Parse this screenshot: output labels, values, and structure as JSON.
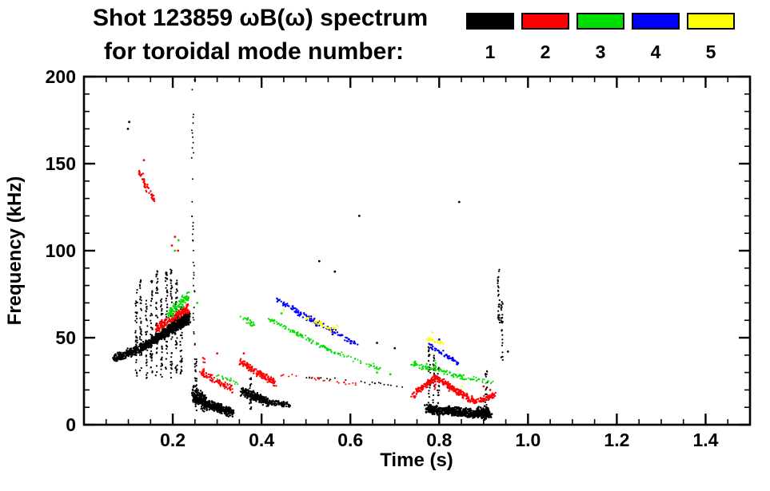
{
  "title": {
    "line1": "Shot 123859 ωB(ω) spectrum",
    "line2": "for toroidal mode number:"
  },
  "legend": {
    "entries": [
      {
        "label": "1",
        "color": "#000000"
      },
      {
        "label": "2",
        "color": "#ff0000"
      },
      {
        "label": "3",
        "color": "#00e000"
      },
      {
        "label": "4",
        "color": "#0000ff"
      },
      {
        "label": "5",
        "color": "#ffff00"
      }
    ]
  },
  "chart_data": {
    "type": "scatter",
    "title": "Shot 123859 ωB(ω) spectrum for toroidal mode number",
    "xlabel": "Time (s)",
    "ylabel": "Frequency (kHz)",
    "xlim": [
      0,
      1.5
    ],
    "ylim": [
      0,
      200
    ],
    "grid": false,
    "legend_position": "top-right",
    "xticks": {
      "major": [
        0.2,
        0.4,
        0.6,
        0.8,
        1.0,
        1.2,
        1.4
      ],
      "labels": [
        "0.2",
        "0.4",
        "0.6",
        "0.8",
        "1.0",
        "1.2",
        "1.4"
      ],
      "minor_step": 0.05
    },
    "yticks": {
      "major": [
        0,
        50,
        100,
        150,
        200
      ],
      "labels": [
        "0",
        "50",
        "100",
        "150",
        "200"
      ],
      "minor_step": 10
    },
    "series": [
      {
        "name": "toroidal mode n=1",
        "mode": 1,
        "color": "#000000",
        "segments": [
          {
            "t0": 0.068,
            "t1": 0.13,
            "f0": 38,
            "f1": 44,
            "n": 220,
            "jf": 2.8,
            "r": 1.2
          },
          {
            "t0": 0.13,
            "t1": 0.19,
            "f0": 44,
            "f1": 54,
            "n": 300,
            "jf": 3.2,
            "r": 1.2
          },
          {
            "t0": 0.19,
            "t1": 0.237,
            "f0": 54,
            "f1": 62,
            "n": 380,
            "jf": 4.5,
            "r": 1.3
          },
          {
            "t0": 0.245,
            "t1": 0.275,
            "f0": 18,
            "f1": 12,
            "n": 220,
            "jf": 6.0,
            "r": 1.2
          },
          {
            "t0": 0.275,
            "t1": 0.335,
            "f0": 12,
            "f1": 7,
            "n": 320,
            "jf": 3.2,
            "r": 1.2
          },
          {
            "t0": 0.355,
            "t1": 0.415,
            "f0": 19,
            "f1": 13,
            "n": 220,
            "jf": 3.0,
            "r": 1.2
          },
          {
            "t0": 0.415,
            "t1": 0.465,
            "f0": 13,
            "f1": 11,
            "n": 90,
            "jf": 2.0,
            "r": 1.1
          },
          {
            "t0": 0.5,
            "t1": 0.72,
            "f0": 28,
            "f1": 22,
            "n": 22,
            "jf": 1.2,
            "r": 1.0
          },
          {
            "t0": 0.77,
            "t1": 0.9,
            "f0": 9,
            "f1": 6,
            "n": 420,
            "jf": 3.0,
            "r": 1.3
          },
          {
            "t0": 0.885,
            "t1": 0.915,
            "f0": 8,
            "f1": 6,
            "n": 130,
            "jf": 4.0,
            "r": 1.3
          }
        ],
        "vlines": [
          {
            "t": 0.118,
            "f0": 28,
            "f1": 78,
            "n": 38
          },
          {
            "t": 0.128,
            "f0": 30,
            "f1": 86,
            "n": 42
          },
          {
            "t": 0.141,
            "f0": 26,
            "f1": 72,
            "n": 34
          },
          {
            "t": 0.152,
            "f0": 30,
            "f1": 84,
            "n": 40
          },
          {
            "t": 0.164,
            "f0": 28,
            "f1": 90,
            "n": 44
          },
          {
            "t": 0.175,
            "f0": 26,
            "f1": 78,
            "n": 38
          },
          {
            "t": 0.186,
            "f0": 30,
            "f1": 88,
            "n": 42
          },
          {
            "t": 0.197,
            "f0": 25,
            "f1": 90,
            "n": 46
          },
          {
            "t": 0.208,
            "f0": 30,
            "f1": 84,
            "n": 40
          },
          {
            "t": 0.219,
            "f0": 28,
            "f1": 72,
            "n": 34
          },
          {
            "t": 0.245,
            "f0": 100,
            "f1": 195,
            "n": 22,
            "r": 1.0
          },
          {
            "t": 0.248,
            "f0": 40,
            "f1": 95,
            "n": 16,
            "r": 1.0
          },
          {
            "t": 0.252,
            "f0": 8,
            "f1": 38,
            "n": 26
          },
          {
            "t": 0.375,
            "f0": 8,
            "f1": 27,
            "n": 22
          },
          {
            "t": 0.778,
            "f0": 12,
            "f1": 45,
            "n": 26
          },
          {
            "t": 0.788,
            "f0": 10,
            "f1": 40,
            "n": 22
          },
          {
            "t": 0.798,
            "f0": 12,
            "f1": 34,
            "n": 18
          },
          {
            "t": 0.906,
            "f0": 5,
            "f1": 31,
            "n": 22
          },
          {
            "t": 0.934,
            "f0": 56,
            "f1": 90,
            "n": 30
          },
          {
            "t": 0.941,
            "f0": 36,
            "f1": 73,
            "n": 28
          }
        ],
        "dots": [
          [
            0.099,
            170
          ],
          [
            0.102,
            174
          ],
          [
            0.135,
            141
          ],
          [
            0.25,
            198
          ],
          [
            0.53,
            94
          ],
          [
            0.565,
            88
          ],
          [
            0.62,
            120
          ],
          [
            0.845,
            128
          ],
          [
            0.66,
            47
          ],
          [
            0.7,
            44
          ],
          [
            0.955,
            42
          ]
        ]
      },
      {
        "name": "toroidal mode n=2",
        "mode": 2,
        "color": "#ff0000",
        "segments": [
          {
            "t0": 0.124,
            "t1": 0.158,
            "f0": 146,
            "f1": 128,
            "n": 48,
            "jf": 2.0,
            "r": 1.2
          },
          {
            "t0": 0.162,
            "t1": 0.235,
            "f0": 55,
            "f1": 67,
            "n": 170,
            "jf": 3.0,
            "r": 1.2
          },
          {
            "t0": 0.262,
            "t1": 0.335,
            "f0": 30,
            "f1": 20,
            "n": 90,
            "jf": 2.4,
            "r": 1.1
          },
          {
            "t0": 0.352,
            "t1": 0.43,
            "f0": 36,
            "f1": 24,
            "n": 150,
            "jf": 2.4,
            "r": 1.2
          },
          {
            "t0": 0.44,
            "t1": 0.62,
            "f0": 29,
            "f1": 23,
            "n": 26,
            "jf": 1.2,
            "r": 1.0
          },
          {
            "t0": 0.74,
            "t1": 0.792,
            "f0": 17,
            "f1": 27,
            "n": 100,
            "jf": 2.2,
            "r": 1.2
          },
          {
            "t0": 0.792,
            "t1": 0.88,
            "f0": 27,
            "f1": 13,
            "n": 170,
            "jf": 2.4,
            "r": 1.2
          },
          {
            "t0": 0.88,
            "t1": 0.925,
            "f0": 13,
            "f1": 17,
            "n": 70,
            "jf": 2.0,
            "r": 1.2
          }
        ],
        "vlines": [
          {
            "t": 0.79,
            "f0": 20,
            "f1": 33,
            "n": 14
          },
          {
            "t": 0.27,
            "f0": 28,
            "f1": 40,
            "n": 10
          }
        ],
        "dots": [
          [
            0.198,
            103
          ],
          [
            0.205,
            108
          ],
          [
            0.212,
            100
          ],
          [
            0.3,
            41
          ],
          [
            0.36,
            41
          ],
          [
            0.9,
            22
          ],
          [
            0.915,
            20
          ],
          [
            0.135,
            152
          ]
        ]
      },
      {
        "name": "toroidal mode n=3",
        "mode": 3,
        "color": "#00e000",
        "segments": [
          {
            "t0": 0.188,
            "t1": 0.237,
            "f0": 63,
            "f1": 74,
            "n": 100,
            "jf": 3.0,
            "r": 1.2
          },
          {
            "t0": 0.3,
            "t1": 0.35,
            "f0": 28,
            "f1": 24,
            "n": 22,
            "jf": 1.8,
            "r": 1.0
          },
          {
            "t0": 0.355,
            "t1": 0.385,
            "f0": 62,
            "f1": 57,
            "n": 24,
            "jf": 1.8,
            "r": 1.1
          },
          {
            "t0": 0.415,
            "t1": 0.56,
            "f0": 61,
            "f1": 42,
            "n": 95,
            "jf": 1.4,
            "r": 1.1
          },
          {
            "t0": 0.56,
            "t1": 0.67,
            "f0": 42,
            "f1": 32,
            "n": 45,
            "jf": 1.4,
            "r": 1.0
          },
          {
            "t0": 0.74,
            "t1": 0.86,
            "f0": 35,
            "f1": 27,
            "n": 75,
            "jf": 2.0,
            "r": 1.2
          },
          {
            "t0": 0.86,
            "t1": 0.92,
            "f0": 27,
            "f1": 24,
            "n": 24,
            "jf": 1.5,
            "r": 1.0
          }
        ],
        "vlines": [
          {
            "t": 0.792,
            "f0": 28,
            "f1": 38,
            "n": 10
          }
        ],
        "dots": [
          [
            0.205,
            100
          ],
          [
            0.213,
            106
          ],
          [
            0.445,
            64
          ],
          [
            0.66,
            30
          ],
          [
            0.69,
            29
          ],
          [
            0.91,
            25
          ],
          [
            0.255,
            70
          ]
        ]
      },
      {
        "name": "toroidal mode n=4",
        "mode": 4,
        "color": "#0000ff",
        "segments": [
          {
            "t0": 0.435,
            "t1": 0.53,
            "f0": 72,
            "f1": 57,
            "n": 75,
            "jf": 1.5,
            "r": 1.2
          },
          {
            "t0": 0.5,
            "t1": 0.615,
            "f0": 63,
            "f1": 46,
            "n": 60,
            "jf": 1.5,
            "r": 1.2
          },
          {
            "t0": 0.775,
            "t1": 0.845,
            "f0": 46,
            "f1": 35,
            "n": 50,
            "jf": 1.6,
            "r": 1.2
          }
        ],
        "vlines": [],
        "dots": [
          [
            0.56,
            52
          ],
          [
            0.6,
            48
          ],
          [
            0.47,
            68
          ],
          [
            0.8,
            49
          ]
        ]
      },
      {
        "name": "toroidal mode n=5",
        "mode": 5,
        "color": "#ffff00",
        "segments": [
          {
            "t0": 0.495,
            "t1": 0.565,
            "f0": 62,
            "f1": 54,
            "n": 26,
            "jf": 1.5,
            "r": 1.3
          },
          {
            "t0": 0.775,
            "t1": 0.812,
            "f0": 50,
            "f1": 46,
            "n": 16,
            "jf": 1.5,
            "r": 1.3
          }
        ],
        "vlines": [],
        "dots": [
          [
            0.57,
            57
          ],
          [
            0.852,
            22
          ],
          [
            0.45,
            66
          ],
          [
            0.785,
            53
          ]
        ]
      }
    ]
  }
}
